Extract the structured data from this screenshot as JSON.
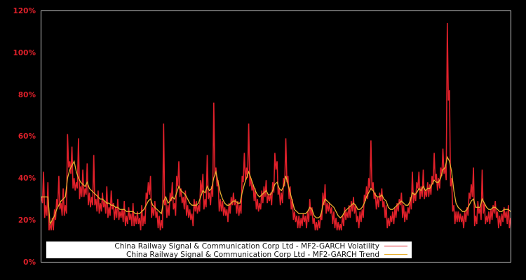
{
  "chart_data": {
    "type": "line",
    "title": "",
    "xlabel": "",
    "ylabel": "",
    "ylim": [
      0,
      120
    ],
    "y_unit": "%",
    "y_ticks": [
      "0%",
      "20%",
      "40%",
      "60%",
      "80%",
      "100%",
      "120%"
    ],
    "grid": false,
    "legend_position": "bottom-left inside",
    "background": "#000000",
    "frame_color": "#c8c8c8",
    "tick_label_color": "#e0202a",
    "series": [
      {
        "name": "China Railway Signal & Communication Corp Ltd - MF2-GARCH Volatility",
        "color": "#e0202a",
        "values": [
          31,
          43,
          27,
          38,
          18,
          21,
          25,
          30,
          41,
          28,
          35,
          27,
          61,
          48,
          55,
          40,
          38,
          59,
          36,
          44,
          35,
          47,
          33,
          31,
          51,
          30,
          34,
          28,
          33,
          29,
          36,
          26,
          34,
          28,
          26,
          30,
          24,
          25,
          29,
          22,
          26,
          23,
          28,
          22,
          24,
          21,
          27,
          22,
          33,
          38,
          41,
          26,
          29,
          24,
          22,
          20,
          66,
          30,
          27,
          33,
          38,
          28,
          41,
          48,
          35,
          31,
          34,
          27,
          25,
          23,
          30,
          29,
          27,
          39,
          42,
          30,
          51,
          33,
          36,
          76,
          45,
          39,
          30,
          29,
          26,
          25,
          28,
          31,
          33,
          30,
          29,
          27,
          41,
          52,
          45,
          66,
          40,
          37,
          35,
          30,
          28,
          34,
          36,
          39,
          32,
          33,
          38,
          52,
          48,
          35,
          33,
          40,
          59,
          41,
          36,
          30,
          24,
          22,
          22,
          21,
          23,
          22,
          24,
          30,
          26,
          21,
          19,
          20,
          23,
          33,
          37,
          28,
          28,
          26,
          24,
          21,
          19,
          18,
          22,
          26,
          24,
          27,
          29,
          31,
          27,
          22,
          24,
          25,
          32,
          36,
          40,
          58,
          38,
          33,
          31,
          33,
          35,
          29,
          27,
          21,
          22,
          24,
          26,
          28,
          30,
          33,
          27,
          24,
          26,
          31,
          43,
          33,
          38,
          43,
          36,
          44,
          34,
          38,
          37,
          41,
          52,
          42,
          40,
          45,
          54,
          45,
          114,
          82,
          40,
          27,
          24,
          24,
          23,
          22,
          24,
          26,
          33,
          37,
          45,
          22,
          29,
          26,
          44,
          28,
          22,
          24,
          25,
          27,
          29,
          24,
          22,
          23,
          26,
          24,
          27,
          21
        ],
        "note": "Approximate sampled readings, ~230 points across full span; major spikes at ~66%, ~76%, ~66%, ~59%, ~58%, peak ~115%"
      },
      {
        "name": "China Railway Signal & Communication Corp Ltd - MF2-GARCH Trend",
        "color": "#e8b030",
        "values": [
          31,
          31,
          31,
          31,
          18,
          20,
          22,
          25,
          27,
          29,
          30,
          31,
          40,
          44,
          46,
          48,
          43,
          40,
          38,
          37,
          36,
          38,
          35,
          34,
          33,
          32,
          31,
          30,
          30,
          29,
          28,
          28,
          27,
          27,
          26,
          26,
          25,
          25,
          25,
          24,
          24,
          24,
          24,
          23,
          23,
          23,
          24,
          25,
          27,
          29,
          30,
          27,
          26,
          25,
          24,
          23,
          29,
          31,
          28,
          29,
          31,
          30,
          33,
          36,
          34,
          33,
          32,
          30,
          28,
          27,
          27,
          27,
          28,
          31,
          34,
          33,
          36,
          34,
          35,
          40,
          43,
          38,
          33,
          30,
          28,
          27,
          27,
          28,
          29,
          29,
          28,
          28,
          33,
          37,
          40,
          43,
          40,
          37,
          34,
          32,
          31,
          32,
          33,
          34,
          32,
          32,
          34,
          37,
          38,
          35,
          34,
          36,
          41,
          37,
          33,
          29,
          25,
          24,
          23,
          23,
          23,
          23,
          24,
          26,
          25,
          22,
          21,
          21,
          22,
          27,
          30,
          29,
          28,
          27,
          26,
          24,
          22,
          21,
          22,
          24,
          25,
          26,
          27,
          28,
          27,
          25,
          25,
          26,
          28,
          31,
          33,
          35,
          34,
          32,
          31,
          31,
          32,
          30,
          29,
          26,
          25,
          25,
          26,
          27,
          28,
          29,
          28,
          27,
          27,
          29,
          33,
          32,
          33,
          35,
          34,
          36,
          34,
          35,
          35,
          37,
          39,
          38,
          38,
          40,
          44,
          45,
          50,
          48,
          43,
          34,
          28,
          26,
          25,
          24,
          24,
          25,
          27,
          29,
          30,
          26,
          26,
          26,
          30,
          28,
          26,
          25,
          25,
          26,
          26,
          25,
          24,
          24,
          25,
          25,
          25,
          24
        ]
      }
    ]
  },
  "legend": {
    "items": [
      {
        "label": "China Railway Signal & Communication Corp Ltd - MF2-GARCH Volatility",
        "color": "#e0202a"
      },
      {
        "label": "China Railway Signal & Communication Corp Ltd - MF2-GARCH Trend",
        "color": "#e8b030"
      }
    ]
  },
  "axis": {
    "y_labels": [
      "0%",
      "20%",
      "40%",
      "60%",
      "80%",
      "100%",
      "120%"
    ]
  }
}
